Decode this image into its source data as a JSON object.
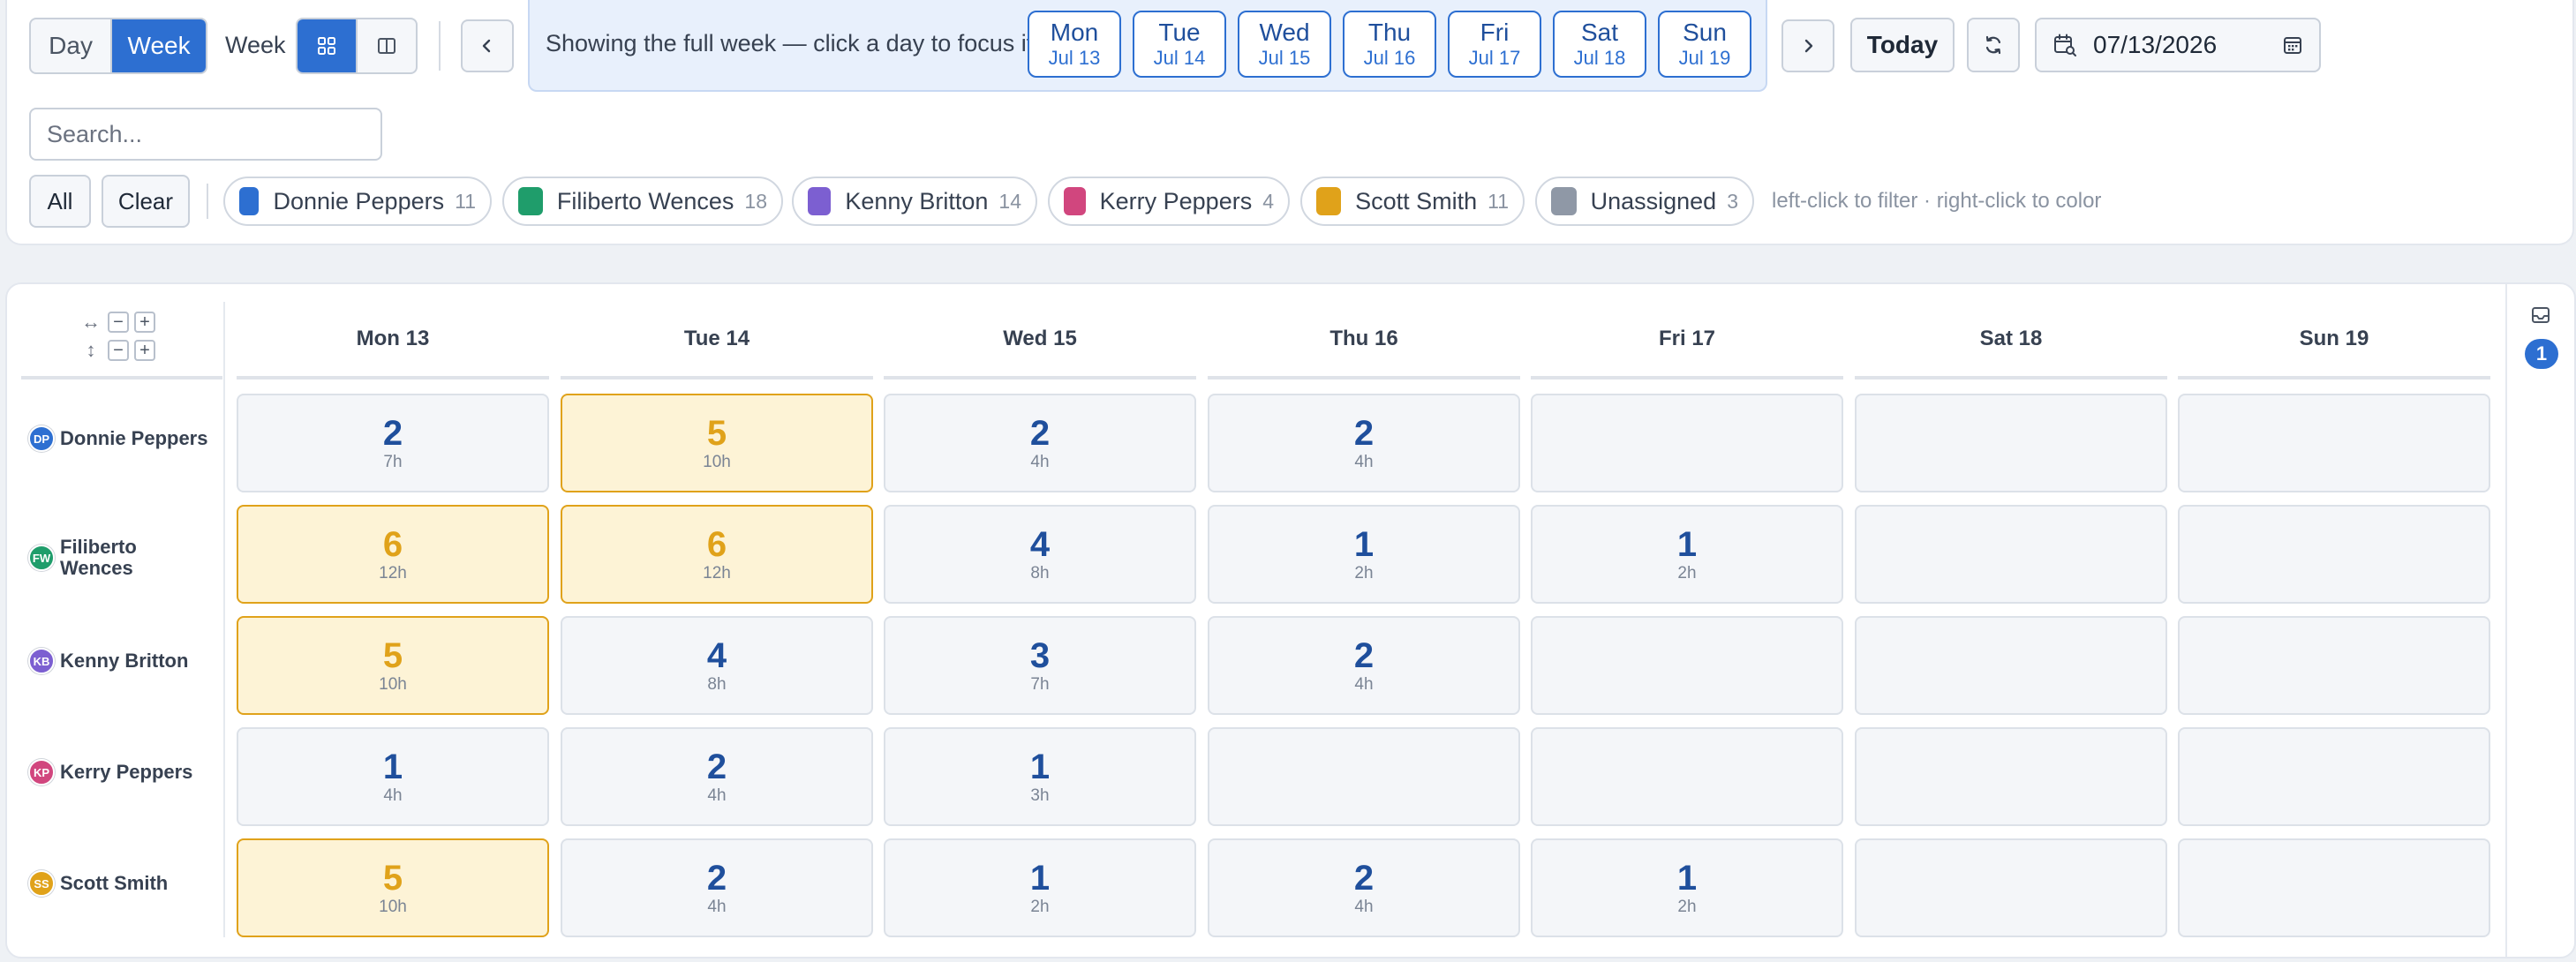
{
  "toolbar": {
    "view_modes": [
      "Day",
      "Week"
    ],
    "active_view": "Week",
    "week_label": "Week",
    "focus_hint": "Showing the full week — click a day to focus it",
    "days": [
      {
        "name": "Mon",
        "date": "Jul 13"
      },
      {
        "name": "Tue",
        "date": "Jul 14"
      },
      {
        "name": "Wed",
        "date": "Jul 15"
      },
      {
        "name": "Thu",
        "date": "Jul 16"
      },
      {
        "name": "Fri",
        "date": "Jul 17"
      },
      {
        "name": "Sat",
        "date": "Jul 18"
      },
      {
        "name": "Sun",
        "date": "Jul 19"
      }
    ],
    "today_label": "Today",
    "date_value": "07/13/2026"
  },
  "search": {
    "placeholder": "Search..."
  },
  "filters": {
    "all_label": "All",
    "clear_label": "Clear",
    "people": [
      {
        "name": "Donnie Peppers",
        "count": "11",
        "color": "#2d6fd1"
      },
      {
        "name": "Filiberto Wences",
        "count": "18",
        "color": "#1f9d6b"
      },
      {
        "name": "Kenny Britton",
        "count": "14",
        "color": "#7c5fd1"
      },
      {
        "name": "Kerry Peppers",
        "count": "4",
        "color": "#d1467e"
      },
      {
        "name": "Scott Smith",
        "count": "11",
        "color": "#e0a21a"
      },
      {
        "name": "Unassigned",
        "count": "3",
        "color": "#8f98a6"
      }
    ],
    "hint": "left-click to filter · right-click to color"
  },
  "grid": {
    "zoom_icons": [
      "↔",
      "↕"
    ],
    "zoom_minus": "−",
    "zoom_plus": "+",
    "columns": [
      "Mon 13",
      "Tue 14",
      "Wed 15",
      "Thu 16",
      "Fri 17",
      "Sat 18",
      "Sun 19"
    ],
    "rows": [
      {
        "initials": "DP",
        "name": "Donnie Peppers",
        "avatar_color": "#2d6fd1",
        "cells": [
          {
            "count": "2",
            "hours": "7h"
          },
          {
            "count": "5",
            "hours": "10h",
            "busy": true
          },
          {
            "count": "2",
            "hours": "4h"
          },
          {
            "count": "2",
            "hours": "4h"
          },
          null,
          null,
          null
        ]
      },
      {
        "initials": "FW",
        "name": "Filiberto Wences",
        "avatar_color": "#1f9d6b",
        "cells": [
          {
            "count": "6",
            "hours": "12h",
            "busy": true
          },
          {
            "count": "6",
            "hours": "12h",
            "busy": true
          },
          {
            "count": "4",
            "hours": "8h"
          },
          {
            "count": "1",
            "hours": "2h"
          },
          {
            "count": "1",
            "hours": "2h"
          },
          null,
          null
        ]
      },
      {
        "initials": "KB",
        "name": "Kenny Britton",
        "avatar_color": "#7c5fd1",
        "cells": [
          {
            "count": "5",
            "hours": "10h",
            "busy": true
          },
          {
            "count": "4",
            "hours": "8h"
          },
          {
            "count": "3",
            "hours": "7h"
          },
          {
            "count": "2",
            "hours": "4h"
          },
          null,
          null,
          null
        ]
      },
      {
        "initials": "KP",
        "name": "Kerry Peppers",
        "avatar_color": "#d1467e",
        "cells": [
          {
            "count": "1",
            "hours": "4h"
          },
          {
            "count": "2",
            "hours": "4h"
          },
          {
            "count": "1",
            "hours": "3h"
          },
          null,
          null,
          null,
          null
        ]
      },
      {
        "initials": "SS",
        "name": "Scott Smith",
        "avatar_color": "#e0a21a",
        "cells": [
          {
            "count": "5",
            "hours": "10h",
            "busy": true
          },
          {
            "count": "2",
            "hours": "4h"
          },
          {
            "count": "1",
            "hours": "2h"
          },
          {
            "count": "2",
            "hours": "4h"
          },
          {
            "count": "1",
            "hours": "2h"
          },
          null,
          null
        ]
      }
    ]
  },
  "side": {
    "inbox_badge": "1"
  }
}
